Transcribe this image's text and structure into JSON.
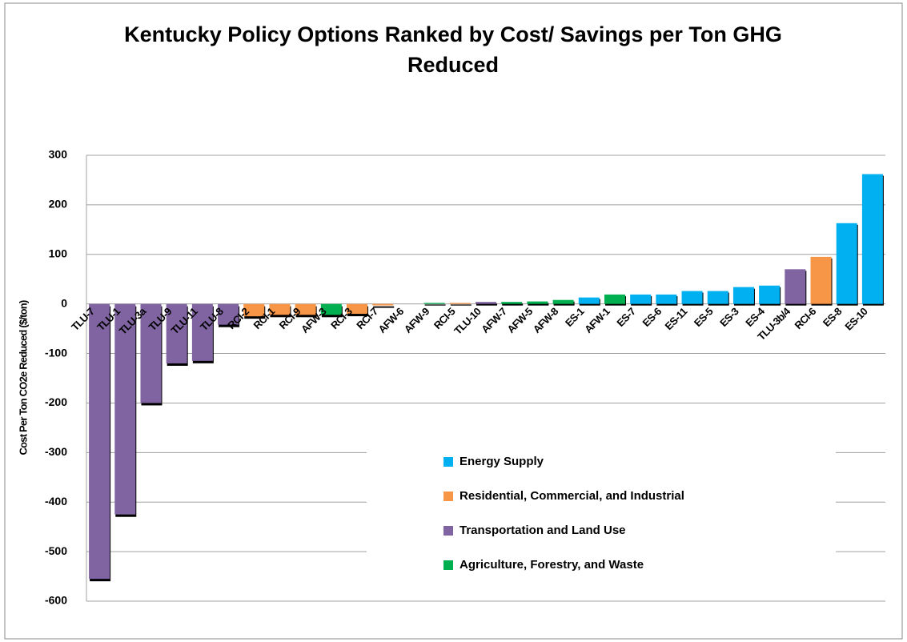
{
  "chart_data": {
    "type": "bar",
    "title": "Kentucky Policy Options Ranked by Cost/ Savings per Ton GHG Reduced",
    "y_label": "Cost Per Ton CO2e Reduced ($/ton)",
    "categories": [
      "TLU-7",
      "TLU-1",
      "TLU-3a",
      "TLU-9",
      "TLU-11",
      "TLU-8",
      "RCI-2",
      "RCI-1",
      "RCI-9",
      "AFW-3",
      "RCI-3",
      "RCI-7",
      "AFW-6",
      "AFW-9",
      "RCI-5",
      "TLU-10",
      "AFW-7",
      "AFW-5",
      "AFW-8",
      "ES-1",
      "AFW-1",
      "ES-7",
      "ES-6",
      "ES-11",
      "ES-5",
      "ES-3",
      "ES-4",
      "TLU-3b/4",
      "RCI-6",
      "ES-8",
      "ES-10"
    ],
    "values": [
      -555,
      -425,
      -200,
      -120,
      -115,
      -42,
      -25,
      -22,
      -22,
      -22,
      -20,
      -3,
      0,
      2,
      2,
      4,
      4,
      5,
      8,
      13,
      19,
      19,
      19,
      26,
      26,
      34,
      37,
      70,
      95,
      163,
      262
    ],
    "colors": [
      "#8064a2",
      "#8064a2",
      "#8064a2",
      "#8064a2",
      "#8064a2",
      "#8064a2",
      "#f79646",
      "#f79646",
      "#f79646",
      "#00b050",
      "#f79646",
      "#f79646",
      "#00b050",
      "#00b050",
      "#f79646",
      "#8064a2",
      "#00b050",
      "#00b050",
      "#00b050",
      "#00b0f0",
      "#00b050",
      "#00b0f0",
      "#00b0f0",
      "#00b0f0",
      "#00b0f0",
      "#00b0f0",
      "#00b0f0",
      "#8064a2",
      "#f79646",
      "#00b0f0",
      "#00b0f0"
    ],
    "legend": [
      {
        "name": "Energy Supply",
        "color": "#00b0f0"
      },
      {
        "name": "Residential, Commercial, and Industrial",
        "color": "#f79646"
      },
      {
        "name": "Transportation and Land Use",
        "color": "#8064a2"
      },
      {
        "name": "Agriculture, Forestry, and Waste",
        "color": "#00b050"
      }
    ],
    "ylim": [
      -600,
      300
    ],
    "yticks": [
      -600,
      -500,
      -400,
      -300,
      -200,
      -100,
      0,
      100,
      200,
      300
    ],
    "grid": true
  }
}
